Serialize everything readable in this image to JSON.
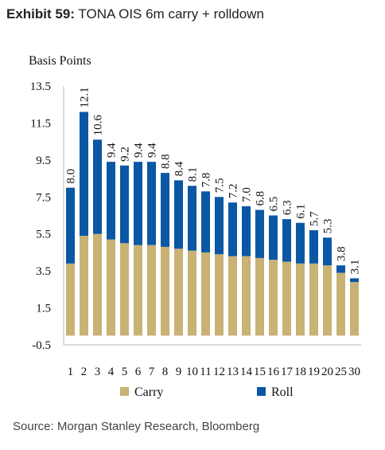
{
  "header": {
    "exhibit_label": "Exhibit 59:",
    "title": "TONA OIS 6m carry + rolldown"
  },
  "footer": {
    "source": "Source: Morgan Stanley Research, Bloomberg"
  },
  "chart_data": {
    "type": "bar",
    "stacked": true,
    "ylabel": "Basis Points",
    "xlabel": "",
    "ylim": [
      -0.5,
      13.5
    ],
    "yticks": [
      "13.5",
      "11.5",
      "9.5",
      "7.5",
      "5.5",
      "3.5",
      "1.5",
      "-0.5"
    ],
    "categories": [
      "1",
      "2",
      "3",
      "4",
      "5",
      "6",
      "7",
      "8",
      "9",
      "10",
      "11",
      "12",
      "13",
      "14",
      "15",
      "16",
      "17",
      "18",
      "19",
      "20",
      "25",
      "30"
    ],
    "series": [
      {
        "name": "Carry",
        "color": "#c8b274",
        "values": [
          3.9,
          5.4,
          5.5,
          5.2,
          5.0,
          4.9,
          4.9,
          4.8,
          4.7,
          4.6,
          4.5,
          4.4,
          4.3,
          4.3,
          4.2,
          4.1,
          4.0,
          3.9,
          3.9,
          3.8,
          3.4,
          2.9
        ]
      },
      {
        "name": "Roll",
        "color": "#0a57a4",
        "values": [
          4.1,
          6.7,
          5.1,
          4.2,
          4.2,
          4.5,
          4.5,
          4.0,
          3.7,
          3.5,
          3.3,
          3.1,
          2.9,
          2.7,
          2.6,
          2.4,
          2.3,
          2.2,
          1.8,
          1.5,
          0.4,
          0.2
        ]
      }
    ],
    "totals": [
      "8.0",
      "12.1",
      "10.6",
      "9.4",
      "9.2",
      "9.4",
      "9.4",
      "8.8",
      "8.4",
      "8.1",
      "7.8",
      "7.5",
      "7.2",
      "7.0",
      "6.8",
      "6.5",
      "6.3",
      "6.1",
      "5.7",
      "5.3",
      "3.8",
      "3.1"
    ],
    "legend": {
      "placement": "bottom",
      "entries": [
        "Carry",
        "Roll"
      ]
    },
    "grid": false
  }
}
